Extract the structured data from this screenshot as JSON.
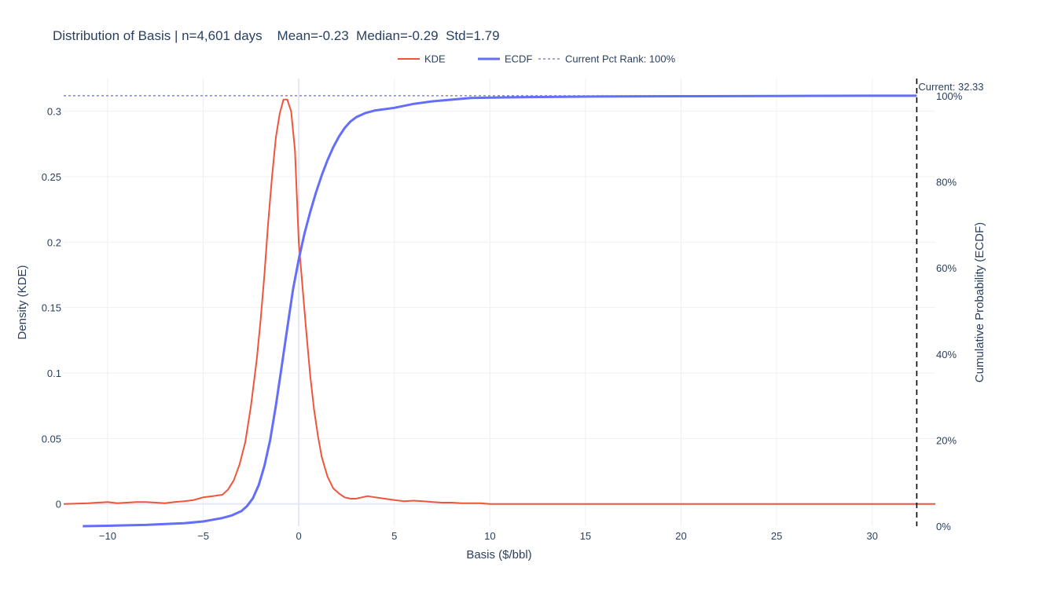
{
  "chart_data": {
    "type": "line",
    "title": "Distribution of Basis | n=4,601 days    Mean=-0.23  Median=-0.29  Std=1.79",
    "xlabel": "Basis ($/bbl)",
    "ylabel": "Density (KDE)",
    "y2label": "Cumulative Probability (ECDF)",
    "xlim": [
      -12.3,
      33.3
    ],
    "ylim": [
      -0.017,
      0.325
    ],
    "y2lim": [
      0,
      1.04
    ],
    "x_ticks": [
      -10,
      -5,
      0,
      5,
      10,
      15,
      20,
      25,
      30
    ],
    "x_tick_labels": [
      "−10",
      "−5",
      "0",
      "5",
      "10",
      "15",
      "20",
      "25",
      "30"
    ],
    "y_ticks": [
      0,
      0.05,
      0.1,
      0.15,
      0.2,
      0.25,
      0.3
    ],
    "y_tick_labels": [
      "0",
      "0.05",
      "0.1",
      "0.15",
      "0.2",
      "0.25",
      "0.3"
    ],
    "y2_ticks": [
      0,
      0.2,
      0.4,
      0.6,
      0.8,
      1.0
    ],
    "y2_tick_labels": [
      "0%",
      "20%",
      "40%",
      "60%",
      "80%",
      "100%"
    ],
    "grid": true,
    "legend_position": "top-center",
    "series": [
      {
        "name": "KDE",
        "axis": "y",
        "color": "#EF553B",
        "style": "solid",
        "x": [
          -12.3,
          -11,
          -10,
          -9.5,
          -9,
          -8.5,
          -8,
          -7.5,
          -7,
          -6.5,
          -6,
          -5.5,
          -5,
          -4.5,
          -4,
          -3.7,
          -3.4,
          -3.1,
          -2.8,
          -2.5,
          -2.2,
          -2.0,
          -1.8,
          -1.6,
          -1.4,
          -1.2,
          -1.0,
          -0.8,
          -0.6,
          -0.4,
          -0.2,
          0,
          0.2,
          0.4,
          0.6,
          0.8,
          1.0,
          1.2,
          1.5,
          1.8,
          2.1,
          2.4,
          2.7,
          3.0,
          3.3,
          3.6,
          4.0,
          4.5,
          5.0,
          5.5,
          6.0,
          6.5,
          7.0,
          7.5,
          8.0,
          8.5,
          9.0,
          9.5,
          10,
          11,
          12,
          15,
          20,
          25,
          30,
          33.3
        ],
        "y": [
          0.0,
          0.0005,
          0.0015,
          0.0005,
          0.001,
          0.0015,
          0.0015,
          0.001,
          0.0005,
          0.0015,
          0.002,
          0.003,
          0.005,
          0.006,
          0.007,
          0.011,
          0.018,
          0.03,
          0.047,
          0.075,
          0.11,
          0.14,
          0.175,
          0.215,
          0.25,
          0.28,
          0.298,
          0.309,
          0.309,
          0.3,
          0.27,
          0.2,
          0.165,
          0.13,
          0.098,
          0.072,
          0.052,
          0.036,
          0.021,
          0.012,
          0.008,
          0.005,
          0.004,
          0.004,
          0.005,
          0.006,
          0.005,
          0.004,
          0.003,
          0.002,
          0.0025,
          0.002,
          0.0015,
          0.001,
          0.001,
          0.0005,
          0.0005,
          0.0005,
          0.0,
          0.0,
          0.0,
          0.0,
          0.0,
          0.0,
          0.0,
          0.0
        ]
      },
      {
        "name": "ECDF",
        "axis": "y2",
        "color": "#636EFA",
        "style": "solid",
        "x": [
          -11.3,
          -10,
          -9,
          -8,
          -7,
          -6,
          -5,
          -4.5,
          -4,
          -3.5,
          -3.0,
          -2.7,
          -2.4,
          -2.1,
          -1.8,
          -1.5,
          -1.2,
          -0.9,
          -0.6,
          -0.3,
          0,
          0.3,
          0.6,
          0.9,
          1.2,
          1.5,
          1.8,
          2.1,
          2.4,
          2.7,
          3.0,
          3.5,
          4.0,
          5.0,
          6.0,
          7.0,
          8.0,
          9.0,
          12,
          15,
          20,
          25,
          30,
          32.33
        ],
        "y": [
          0.0,
          0.001,
          0.002,
          0.003,
          0.005,
          0.007,
          0.011,
          0.015,
          0.019,
          0.025,
          0.035,
          0.047,
          0.065,
          0.095,
          0.14,
          0.2,
          0.28,
          0.37,
          0.46,
          0.55,
          0.62,
          0.68,
          0.73,
          0.775,
          0.815,
          0.85,
          0.88,
          0.905,
          0.925,
          0.94,
          0.95,
          0.96,
          0.966,
          0.972,
          0.981,
          0.987,
          0.991,
          0.995,
          0.997,
          0.998,
          0.999,
          0.9995,
          1.0,
          1.0
        ]
      },
      {
        "name": "Current Pct Rank: 100%",
        "axis": "y2",
        "color": "#636EFA",
        "style": "dotted",
        "x": [
          -12.3,
          32.33
        ],
        "y": [
          1.0,
          1.0
        ]
      }
    ],
    "annotations": [
      {
        "text": "Current: 32.33",
        "x": 32.33
      }
    ],
    "vline": {
      "x": 32.33,
      "color": "#000000",
      "style": "dashed"
    }
  }
}
